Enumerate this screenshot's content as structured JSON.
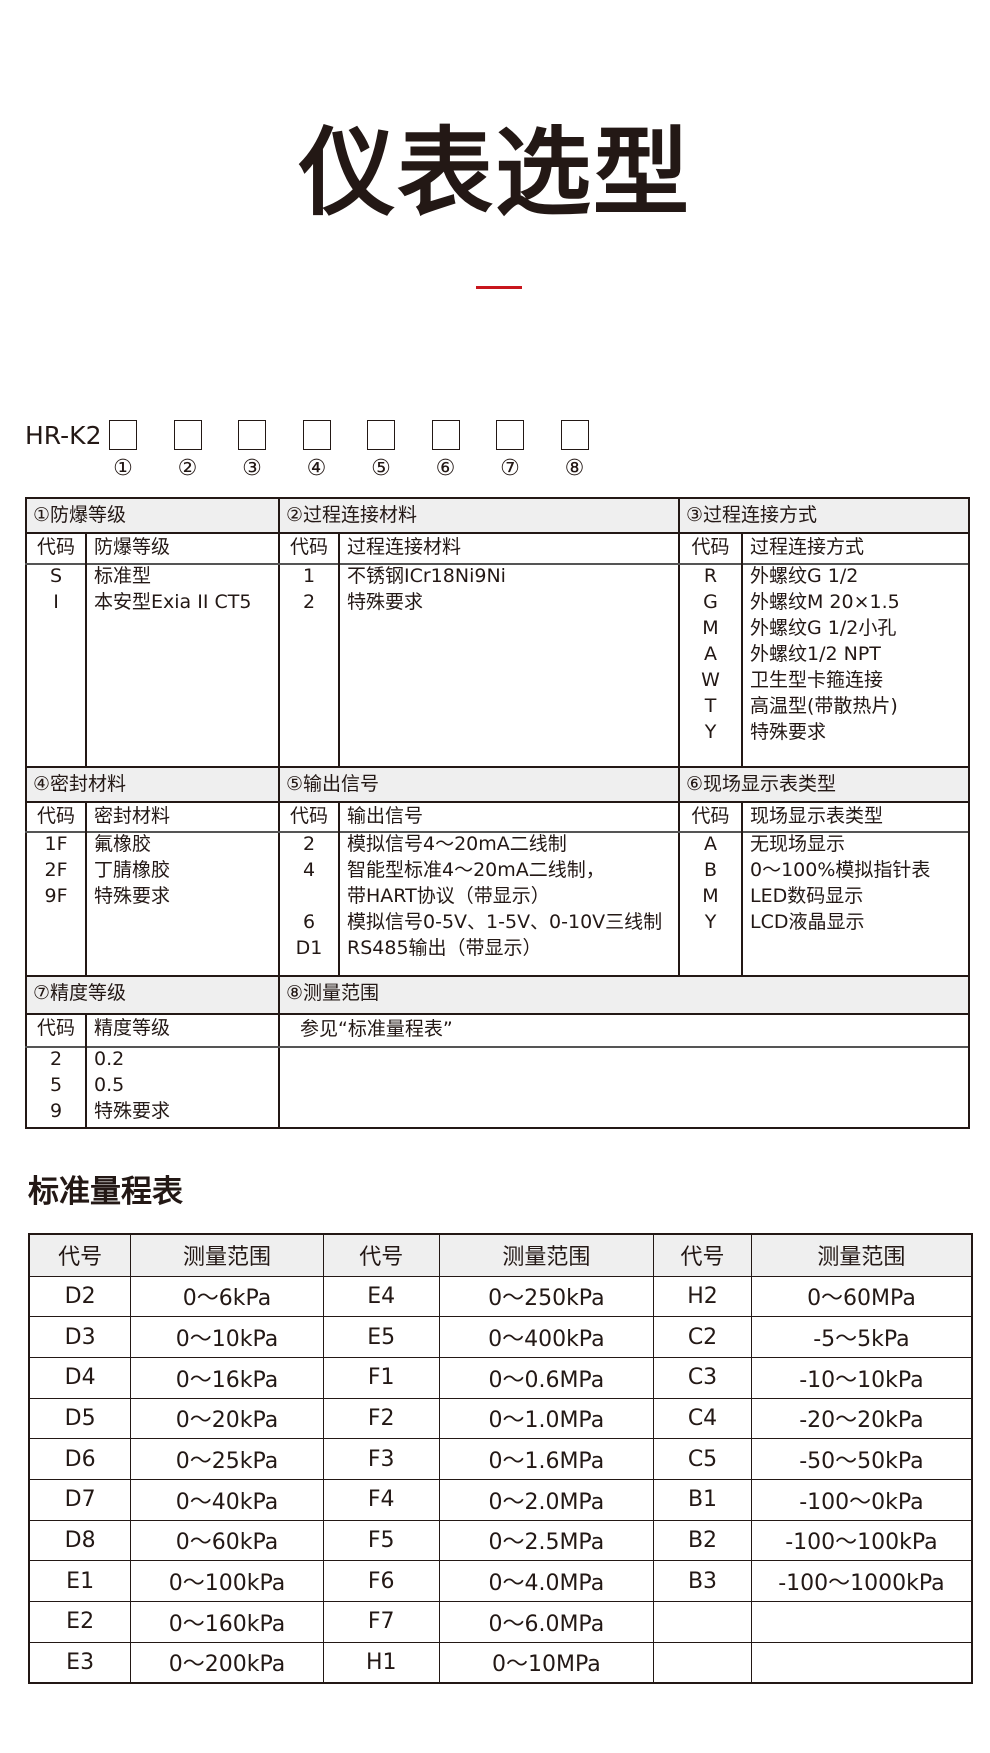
{
  "title": "仪表选型",
  "accent_color": "#c8161d",
  "model": {
    "prefix": "HR-K2",
    "slots": [
      "①",
      "②",
      "③",
      "④",
      "⑤",
      "⑥",
      "⑦",
      "⑧"
    ]
  },
  "sections": [
    {
      "title": "①防爆等级",
      "code_header": "代码",
      "desc_header": "防爆等级",
      "rows": [
        [
          "S",
          "标准型"
        ],
        [
          "I",
          "本安型Exia II CT5"
        ]
      ]
    },
    {
      "title": "②过程连接材料",
      "code_header": "代码",
      "desc_header": "过程连接材料",
      "rows": [
        [
          "1",
          "不锈钢ICr18Ni9Ni"
        ],
        [
          "2",
          "特殊要求"
        ]
      ]
    },
    {
      "title": "③过程连接方式",
      "code_header": "代码",
      "desc_header": "过程连接方式",
      "rows": [
        [
          "R",
          "外螺纹G 1/2"
        ],
        [
          "G",
          "外螺纹M 20×1.5"
        ],
        [
          "M",
          "外螺纹G 1/2小孔"
        ],
        [
          "A",
          "外螺纹1/2 NPT"
        ],
        [
          "W",
          "卫生型卡箍连接"
        ],
        [
          "T",
          "高温型(带散热片)"
        ],
        [
          "Y",
          "特殊要求"
        ]
      ]
    },
    {
      "title": "④密封材料",
      "code_header": "代码",
      "desc_header": "密封材料",
      "rows": [
        [
          "1F",
          "氟橡胶"
        ],
        [
          "2F",
          "丁腈橡胶"
        ],
        [
          "9F",
          "特殊要求"
        ]
      ]
    },
    {
      "title": "⑤输出信号",
      "code_header": "代码",
      "desc_header": "输出信号",
      "rows": [
        [
          "2",
          "模拟信号4～20mA二线制"
        ],
        [
          "4",
          "智能型标准4～20mA二线制，"
        ],
        [
          "",
          "带HART协议（带显示）"
        ],
        [
          "6",
          "模拟信号0-5V、1-5V、0-10V三线制"
        ],
        [
          "D1",
          "RS485输出（带显示）"
        ]
      ]
    },
    {
      "title": "⑥现场显示表类型",
      "code_header": "代码",
      "desc_header": "现场显示表类型",
      "rows": [
        [
          "A",
          "无现场显示"
        ],
        [
          "B",
          "0～100%模拟指针表"
        ],
        [
          "M",
          "LED数码显示"
        ],
        [
          "Y",
          "LCD液晶显示"
        ]
      ]
    },
    {
      "title": "⑦精度等级",
      "code_header": "代码",
      "desc_header": "精度等级",
      "rows": [
        [
          "2",
          "0.2"
        ],
        [
          "5",
          "0.5"
        ],
        [
          "9",
          "特殊要求"
        ]
      ]
    },
    {
      "title": "⑧测量范围",
      "note": "参见“标准量程表”"
    }
  ],
  "range_table": {
    "title": "标准量程表",
    "headers": [
      "代号",
      "测量范围",
      "代号",
      "测量范围",
      "代号",
      "测量范围"
    ],
    "rows": [
      [
        "D2",
        "0～6kPa",
        "E4",
        "0～250kPa",
        "H2",
        "0～60MPa"
      ],
      [
        "D3",
        "0～10kPa",
        "E5",
        "0～400kPa",
        "C2",
        "-5～5kPa"
      ],
      [
        "D4",
        "0～16kPa",
        "F1",
        "0～0.6MPa",
        "C3",
        "-10～10kPa"
      ],
      [
        "D5",
        "0～20kPa",
        "F2",
        "0～1.0MPa",
        "C4",
        "-20～20kPa"
      ],
      [
        "D6",
        "0～25kPa",
        "F3",
        "0～1.6MPa",
        "C5",
        "-50～50kPa"
      ],
      [
        "D7",
        "0～40kPa",
        "F4",
        "0～2.0MPa",
        "B1",
        "-100～0kPa"
      ],
      [
        "D8",
        "0～60kPa",
        "F5",
        "0～2.5MPa",
        "B2",
        "-100～100kPa"
      ],
      [
        "E1",
        "0～100kPa",
        "F6",
        "0～4.0MPa",
        "B3",
        "-100～1000kPa"
      ],
      [
        "E2",
        "0～160kPa",
        "F7",
        "0～6.0MPa",
        "",
        ""
      ],
      [
        "E3",
        "0～200kPa",
        "H1",
        "0～10MPa",
        "",
        ""
      ]
    ]
  }
}
